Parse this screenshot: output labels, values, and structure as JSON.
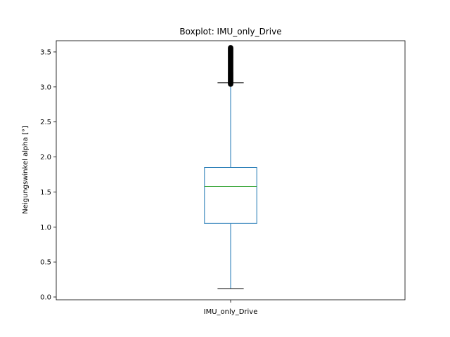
{
  "chart_data": {
    "type": "box",
    "title": "Boxplot: IMU_only_Drive",
    "xlabel": "",
    "ylabel": "Neigungswinkel alpha [°]",
    "ylim": [
      -0.04,
      3.66
    ],
    "yticks": [
      "0.0",
      "0.5",
      "1.0",
      "1.5",
      "2.0",
      "2.5",
      "3.0",
      "3.5"
    ],
    "categories": [
      "IMU_only_Drive"
    ],
    "boxes": [
      {
        "name": "IMU_only_Drive",
        "whisker_low": 0.12,
        "q1": 1.05,
        "median": 1.58,
        "q3": 1.85,
        "whisker_high": 3.06,
        "outliers": [
          3.04,
          3.05,
          3.06,
          3.07,
          3.08,
          3.09,
          3.1,
          3.11,
          3.12,
          3.13,
          3.14,
          3.15,
          3.16,
          3.17,
          3.18,
          3.19,
          3.2,
          3.21,
          3.22,
          3.23,
          3.24,
          3.25,
          3.26,
          3.27,
          3.28,
          3.29,
          3.3,
          3.31,
          3.32,
          3.33,
          3.34,
          3.35,
          3.36,
          3.37,
          3.38,
          3.39,
          3.4,
          3.41,
          3.42,
          3.43,
          3.44,
          3.45,
          3.46,
          3.47,
          3.48,
          3.49,
          3.5,
          3.51,
          3.52,
          3.53,
          3.54,
          3.55,
          3.56
        ]
      }
    ],
    "grid": false,
    "colors": {
      "box": "#1f77b4",
      "median": "#2ca02c",
      "caps": "#000000",
      "outliers": "#000000"
    }
  }
}
